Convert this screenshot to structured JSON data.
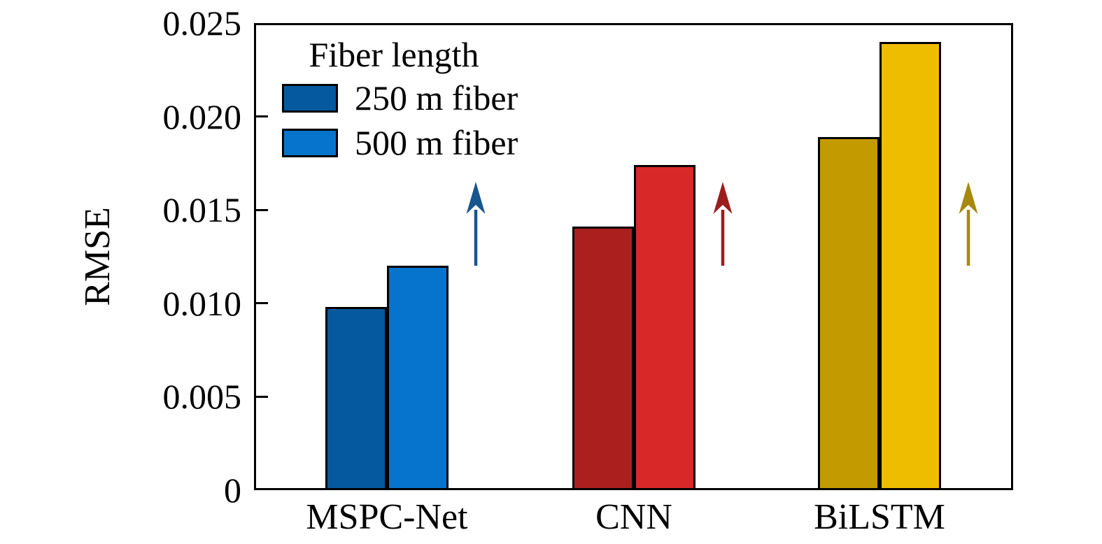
{
  "chart_data": {
    "type": "bar",
    "title": "",
    "ylabel": "RMSE",
    "xlabel": "",
    "ylim": [
      0,
      0.025
    ],
    "yticks": [
      0,
      0.005,
      0.01,
      0.015,
      0.02,
      0.025
    ],
    "ytick_labels": [
      "0",
      "0.005",
      "0.010",
      "0.015",
      "0.020",
      "0.025"
    ],
    "categories": [
      "MSPC-Net",
      "CNN",
      "BiLSTM"
    ],
    "series": [
      {
        "name": "250 m fiber",
        "shade": "dark",
        "values": [
          0.0098,
          0.0141,
          0.0189
        ]
      },
      {
        "name": "500 m fiber",
        "shade": "light",
        "values": [
          0.012,
          0.0174,
          0.024
        ]
      }
    ],
    "group_styles": [
      {
        "category": "MSPC-Net",
        "dark": "#05599e",
        "light": "#0674cd",
        "arrow": "#17568f"
      },
      {
        "category": "CNN",
        "dark": "#ab1f1f",
        "light": "#d82828",
        "arrow": "#9c1d1d"
      },
      {
        "category": "BiLSTM",
        "dark": "#c39a00",
        "light": "#efbd00",
        "arrow": "#a6890d"
      }
    ],
    "legend": {
      "title": "Fiber length",
      "position": "upper-left",
      "frame": false,
      "entries": [
        {
          "label": "250 m fiber",
          "color": "#05599e"
        },
        {
          "label": "500 m fiber",
          "color": "#0674cd"
        }
      ]
    },
    "annotations": [
      {
        "type": "up-arrow",
        "category": "MSPC-Net"
      },
      {
        "type": "up-arrow",
        "category": "CNN"
      },
      {
        "type": "up-arrow",
        "category": "BiLSTM"
      }
    ],
    "grid": false,
    "tick_direction": "in",
    "axis_color": "#000000",
    "background": "#ffffff"
  }
}
